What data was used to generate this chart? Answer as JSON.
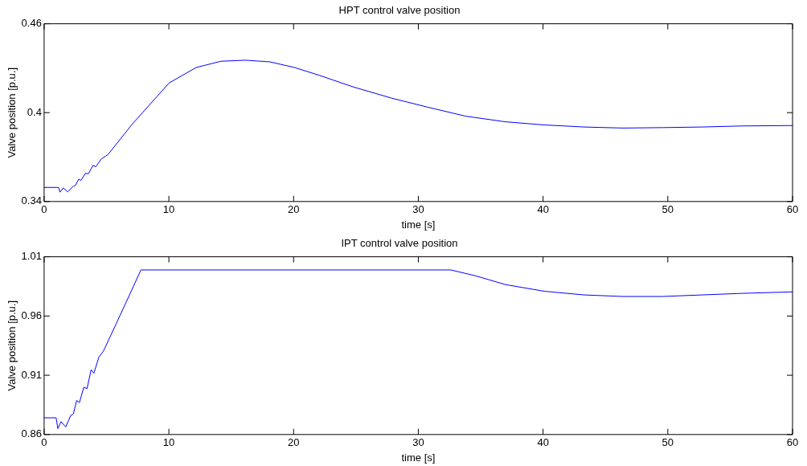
{
  "chart_data": [
    {
      "type": "line",
      "title": "HPT control valve position",
      "xlabel": "time [s]",
      "ylabel": "Valve position [p.u.]",
      "xlim": [
        0,
        60
      ],
      "xticks": [
        0,
        10,
        20,
        30,
        40,
        50,
        60
      ],
      "ylim": [
        0.34,
        0.46
      ],
      "yticks": [
        0.34,
        0.4,
        0.46
      ],
      "series": [
        {
          "color": "#0000ff",
          "x": [
            0,
            1.16,
            1.27,
            1.53,
            1.9,
            2.3,
            2.51,
            2.78,
            2.95,
            3.32,
            3.54,
            3.93,
            4.15,
            4.59,
            5.11,
            7.08,
            10.03,
            12.2,
            14.17,
            16.13,
            18.1,
            20.06,
            22.03,
            24.8,
            27.9,
            30.7,
            33.8,
            37,
            40.1,
            43.3,
            46.4,
            49.6,
            52.7,
            55.9,
            60
          ],
          "values": [
            0.3495,
            0.3495,
            0.3463,
            0.3491,
            0.3465,
            0.35,
            0.3509,
            0.3551,
            0.3542,
            0.3591,
            0.3586,
            0.3644,
            0.3635,
            0.3688,
            0.3716,
            0.3924,
            0.4201,
            0.4305,
            0.4347,
            0.4354,
            0.4343,
            0.4305,
            0.4253,
            0.4173,
            0.4097,
            0.4038,
            0.3976,
            0.3938,
            0.3917,
            0.3903,
            0.3896,
            0.3899,
            0.3903,
            0.391,
            0.3913
          ]
        }
      ]
    },
    {
      "type": "line",
      "title": "IPT control valve position",
      "xlabel": "time [s]",
      "ylabel": "Valve position [p.u.]",
      "xlim": [
        0,
        60
      ],
      "xticks": [
        0,
        10,
        20,
        30,
        40,
        50,
        60
      ],
      "ylim": [
        0.86,
        1.01
      ],
      "yticks": [
        0.86,
        0.91,
        0.96,
        1.01
      ],
      "series": [
        {
          "color": "#0000ff",
          "x": [
            0,
            0.96,
            1.1,
            1.36,
            1.73,
            2.13,
            2.35,
            2.61,
            2.83,
            3.18,
            3.44,
            3.77,
            3.99,
            4.39,
            4.76,
            5.75,
            6.84,
            7.76,
            32.6,
            34.6,
            37,
            40.1,
            43.3,
            46.4,
            49.6,
            52.7,
            55.9,
            60
          ],
          "values": [
            0.8741,
            0.8741,
            0.865,
            0.8708,
            0.8664,
            0.876,
            0.8775,
            0.8888,
            0.8869,
            0.8999,
            0.8987,
            0.9147,
            0.9117,
            0.9253,
            0.9305,
            0.9529,
            0.9777,
            0.9989,
            0.9989,
            0.9939,
            0.9865,
            0.9809,
            0.9778,
            0.9765,
            0.9765,
            0.9778,
            0.9791,
            0.9804
          ]
        }
      ]
    }
  ]
}
